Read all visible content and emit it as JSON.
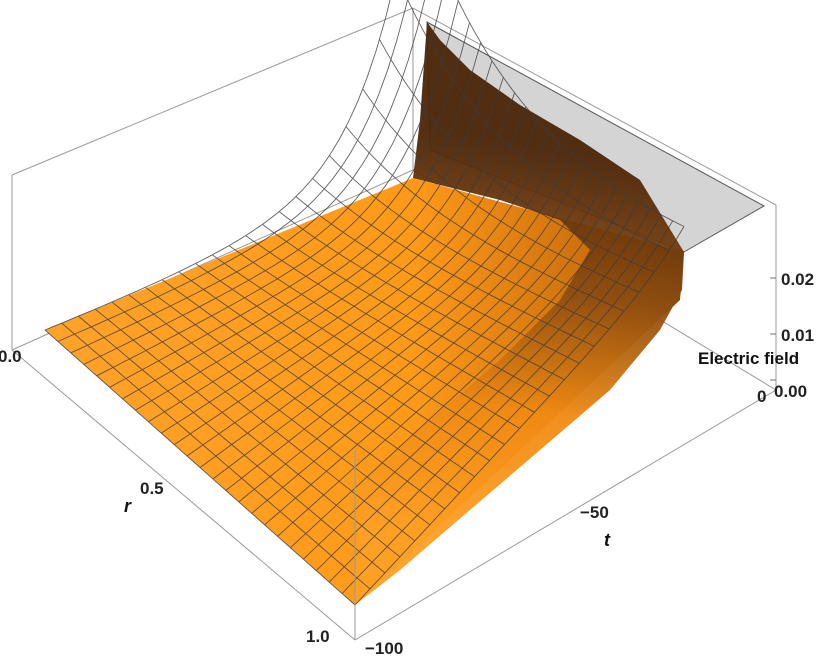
{
  "chart_data": {
    "type": "surface3d",
    "title": "",
    "axes": {
      "r": {
        "label": "r",
        "ticks": [
          "0.0",
          "0.5",
          "1.0"
        ],
        "range": [
          0,
          1
        ]
      },
      "t": {
        "label": "t",
        "ticks": [
          "-100",
          "-50",
          "0"
        ],
        "range": [
          -100,
          0
        ]
      },
      "z": {
        "label": "Electric field",
        "ticks": [
          "0.00",
          "0.01",
          "0.02"
        ],
        "range": [
          0,
          0.027
        ]
      }
    },
    "surface": {
      "description_values": "field is ~0 for most of the domain and rises sharply near r = 0 as t approaches 0",
      "samples": [
        {
          "r": 0.0,
          "t": 0,
          "field": 0.027
        },
        {
          "r": 0.0,
          "t": -10,
          "field": 0.022
        },
        {
          "r": 0.0,
          "t": -25,
          "field": 0.009
        },
        {
          "r": 0.0,
          "t": -50,
          "field": 0.001
        },
        {
          "r": 0.0,
          "t": -100,
          "field": 0.0
        },
        {
          "r": 0.5,
          "t": 0,
          "field": 0.015
        },
        {
          "r": 0.5,
          "t": -25,
          "field": 0.004
        },
        {
          "r": 0.5,
          "t": -100,
          "field": 0.0
        },
        {
          "r": 1.0,
          "t": 0,
          "field": 0.0
        },
        {
          "r": 1.0,
          "t": -100,
          "field": 0.0
        }
      ]
    },
    "colors": {
      "surface_low": "#ff9f1f",
      "surface_high": "#5a2e0a",
      "wall": "#d4d4d4",
      "mesh": "#3a3a3a"
    }
  }
}
